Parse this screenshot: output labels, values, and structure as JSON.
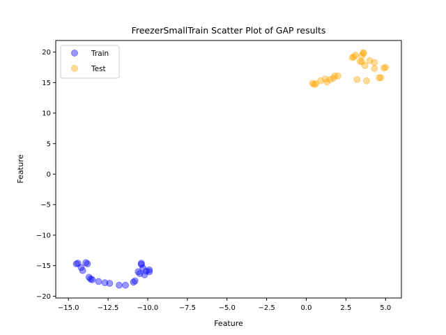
{
  "chart_data": {
    "type": "scatter",
    "title": "FreezerSmallTrain Scatter Plot of GAP results",
    "xlabel": "Feature",
    "ylabel": "Feature",
    "xlim": [
      -15.8,
      6.0
    ],
    "ylim": [
      -20.3,
      21.9
    ],
    "xticks": [
      -15.0,
      -12.5,
      -10.0,
      -7.5,
      -5.0,
      -2.5,
      0.0,
      2.5,
      5.0
    ],
    "xtick_labels": [
      "−15.0",
      "−12.5",
      "−10.0",
      "−7.5",
      "−5.0",
      "−2.5",
      "0.0",
      "2.5",
      "5.0"
    ],
    "yticks": [
      -20,
      -15,
      -10,
      -5,
      0,
      5,
      10,
      15,
      20
    ],
    "ytick_labels": [
      "−20",
      "−15",
      "−10",
      "−5",
      "0",
      "5",
      "10",
      "15",
      "20"
    ],
    "grid": false,
    "legend_position": "upper-left",
    "series": [
      {
        "name": "Train",
        "color": "#0000ff",
        "points": [
          [
            -14.5,
            -14.7
          ],
          [
            -14.4,
            -14.6
          ],
          [
            -14.2,
            -15.3
          ],
          [
            -14.1,
            -15.8
          ],
          [
            -13.9,
            -14.5
          ],
          [
            -13.8,
            -14.7
          ],
          [
            -13.7,
            -16.9
          ],
          [
            -13.6,
            -17.2
          ],
          [
            -13.5,
            -17.3
          ],
          [
            -13.1,
            -17.6
          ],
          [
            -12.7,
            -17.8
          ],
          [
            -12.4,
            -17.9
          ],
          [
            -11.8,
            -18.2
          ],
          [
            -11.4,
            -18.2
          ],
          [
            -10.9,
            -17.7
          ],
          [
            -10.8,
            -17.5
          ],
          [
            -10.6,
            -16.0
          ],
          [
            -10.5,
            -16.3
          ],
          [
            -10.4,
            -14.6
          ],
          [
            -10.4,
            -14.8
          ],
          [
            -10.3,
            -15.4
          ],
          [
            -10.2,
            -16.5
          ],
          [
            -10.1,
            -15.9
          ],
          [
            -9.9,
            -15.7
          ],
          [
            -9.9,
            -16.0
          ]
        ]
      },
      {
        "name": "Test",
        "color": "#ffa500",
        "points": [
          [
            0.4,
            14.9
          ],
          [
            0.5,
            14.7
          ],
          [
            0.6,
            14.8
          ],
          [
            0.9,
            15.3
          ],
          [
            1.2,
            15.6
          ],
          [
            1.3,
            15.1
          ],
          [
            1.5,
            15.5
          ],
          [
            1.7,
            15.7
          ],
          [
            1.8,
            16.1
          ],
          [
            2.0,
            16.1
          ],
          [
            2.9,
            19.1
          ],
          [
            3.0,
            19.2
          ],
          [
            3.1,
            19.5
          ],
          [
            3.2,
            15.5
          ],
          [
            3.4,
            18.5
          ],
          [
            3.5,
            18.4
          ],
          [
            3.5,
            19.4
          ],
          [
            3.6,
            19.8
          ],
          [
            3.6,
            19.9
          ],
          [
            3.7,
            17.8
          ],
          [
            3.8,
            15.3
          ],
          [
            4.0,
            18.6
          ],
          [
            4.3,
            18.3
          ],
          [
            4.3,
            17.3
          ],
          [
            4.6,
            15.8
          ],
          [
            4.7,
            15.8
          ],
          [
            4.9,
            17.4
          ],
          [
            5.0,
            17.5
          ]
        ]
      }
    ]
  }
}
